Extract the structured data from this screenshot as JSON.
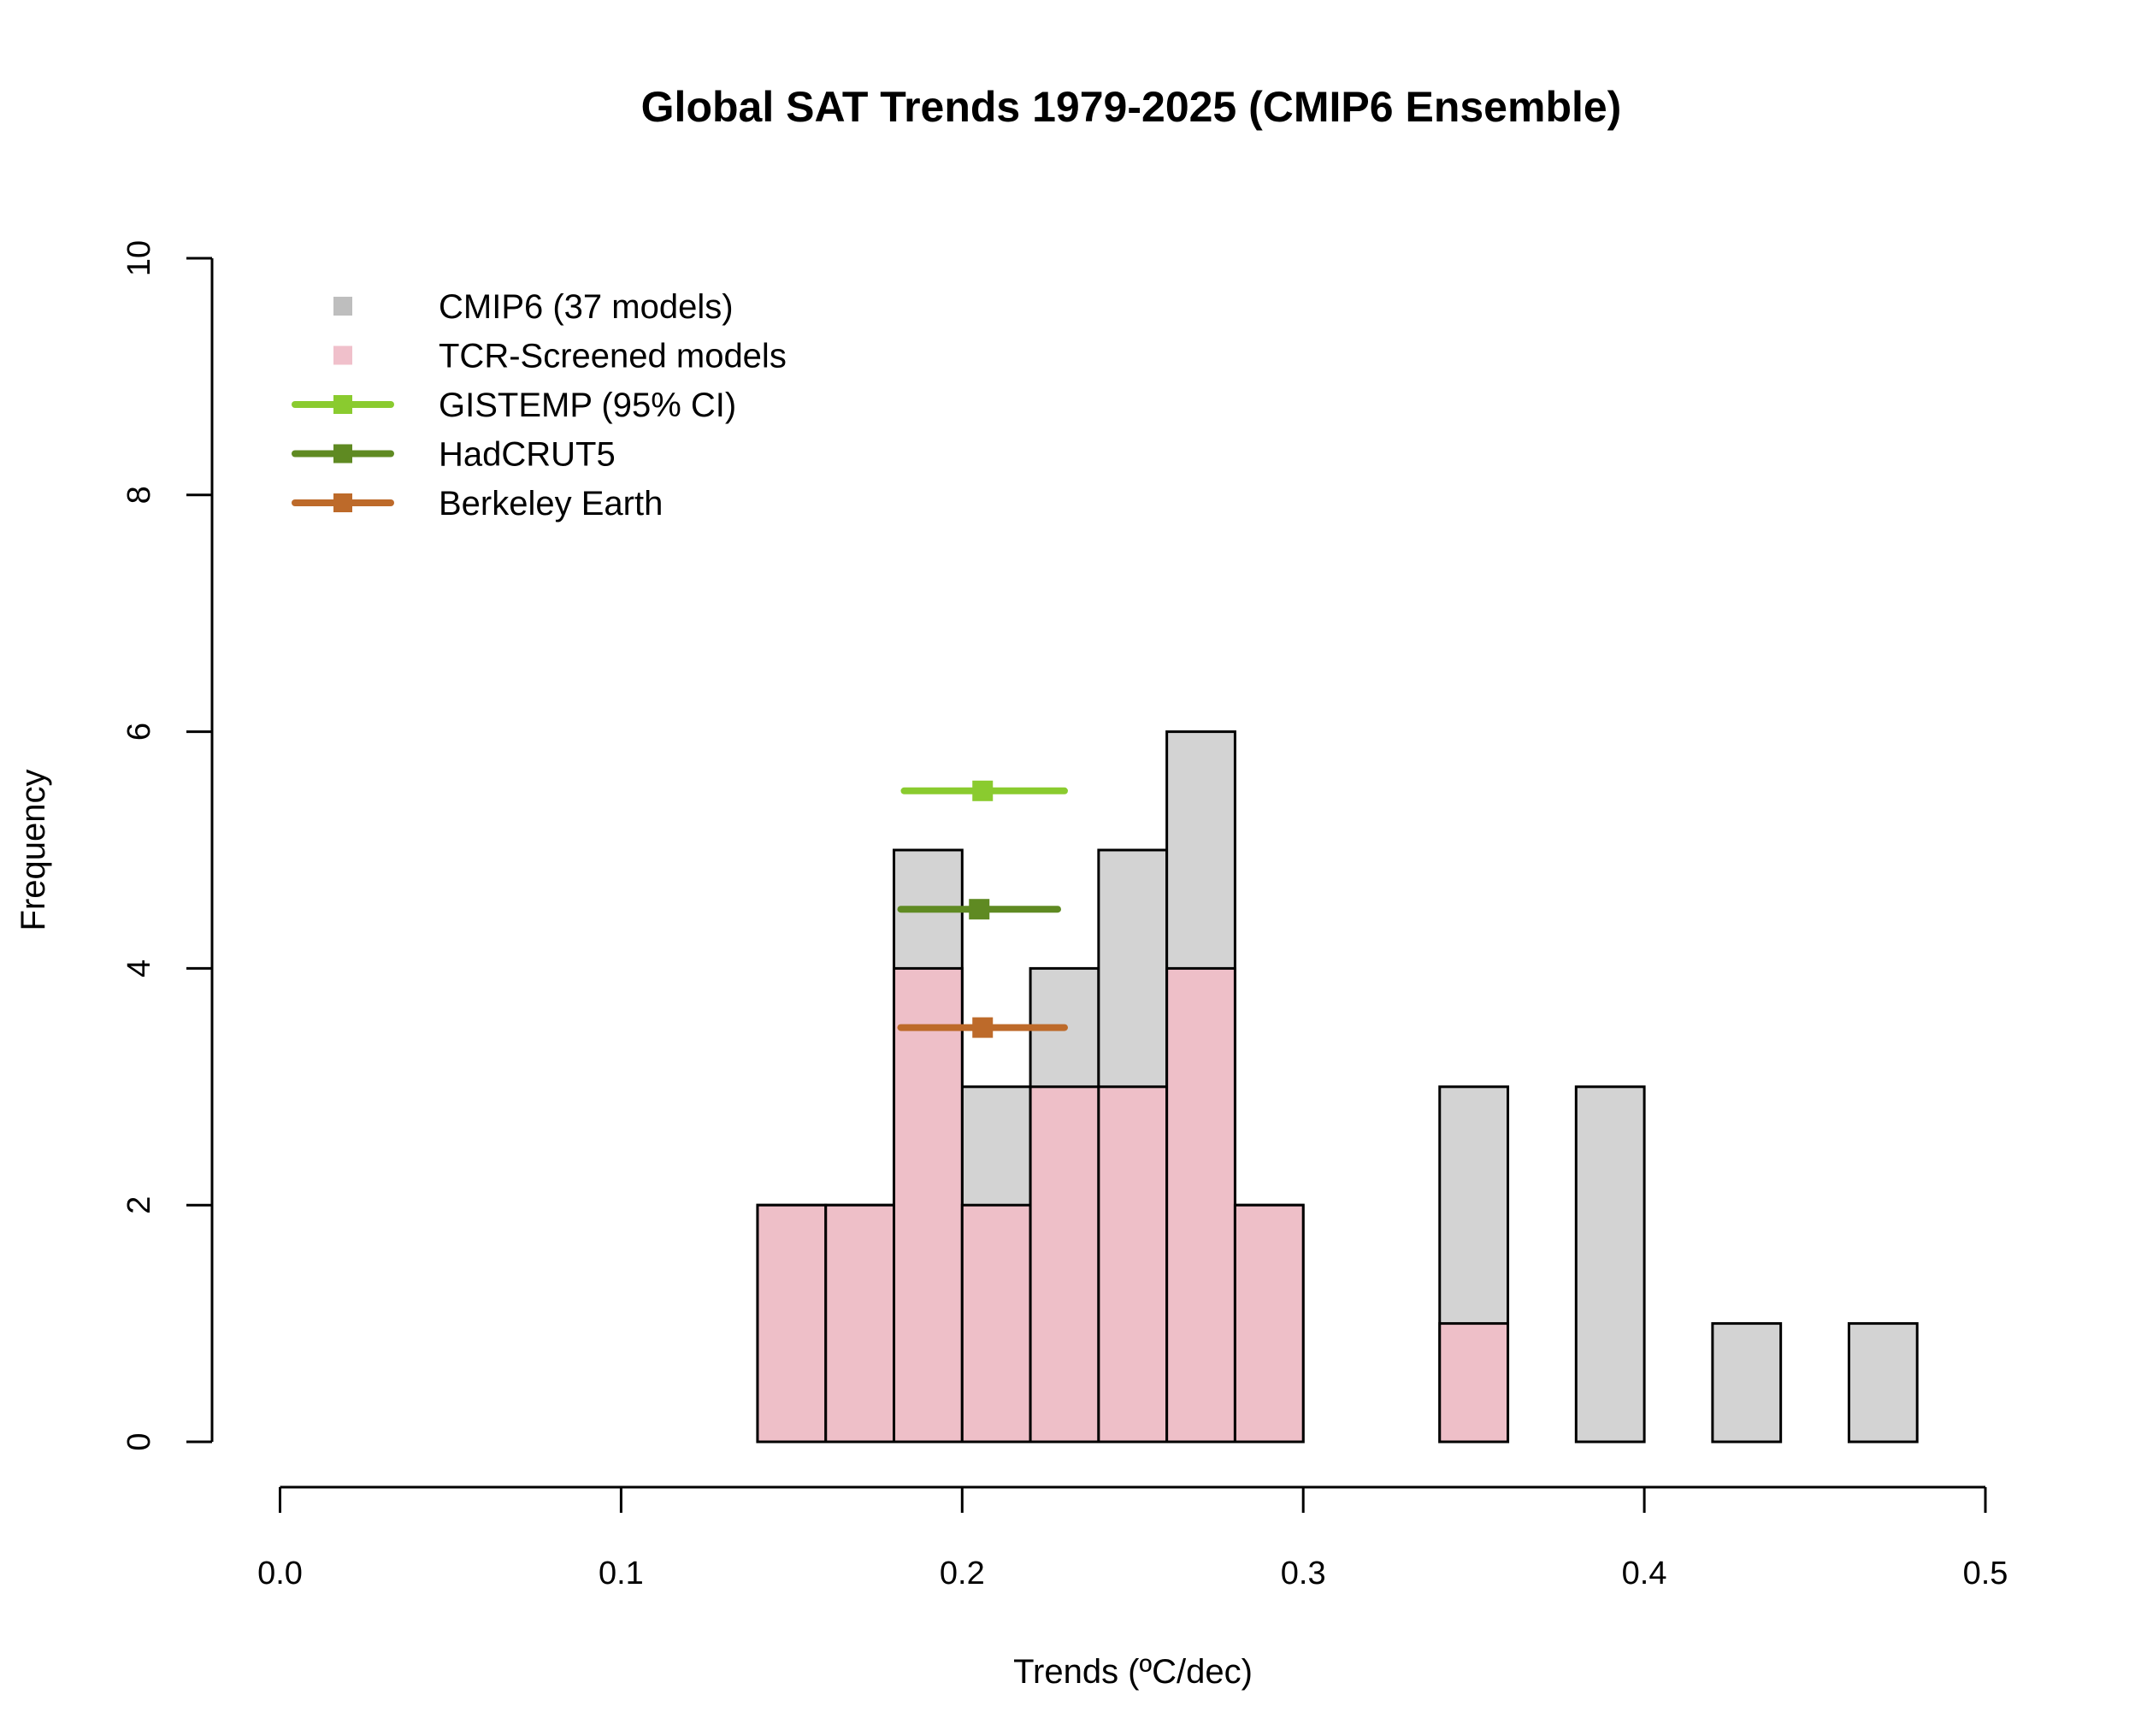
{
  "chart_data": {
    "type": "bar",
    "title": "Global SAT Trends 1979-2025 (CMIP6 Ensemble)",
    "xlabel": "Trends (ºC/dec)",
    "ylabel": "Frequency",
    "xlim": [
      0,
      0.5
    ],
    "ylim": [
      0,
      10
    ],
    "xticks": [
      "0.0",
      "0.1",
      "0.2",
      "0.3",
      "0.4",
      "0.5"
    ],
    "yticks": [
      "0",
      "2",
      "4",
      "6",
      "8",
      "10"
    ],
    "grid": false,
    "legend_position": "top-left",
    "bin_edges": [
      0.14,
      0.16,
      0.18,
      0.2,
      0.22,
      0.24,
      0.26,
      0.28,
      0.3,
      0.32,
      0.34,
      0.36,
      0.38,
      0.4,
      0.42,
      0.44,
      0.46,
      0.48
    ],
    "series": [
      {
        "name": "CMIP6 (37 models)",
        "color": "#D3D3D3",
        "legend_color": "#BEBEBE",
        "values": [
          2,
          2,
          5,
          3,
          4,
          5,
          6,
          2,
          0,
          0,
          3,
          0,
          3,
          0,
          1,
          0,
          1
        ]
      },
      {
        "name": "TCR-Screened models",
        "color": "#EEBFC8",
        "legend_color": "#F0C0CB",
        "values": [
          2,
          2,
          4,
          2,
          3,
          3,
          4,
          2,
          0,
          0,
          1,
          0,
          0,
          0,
          0,
          0,
          0
        ]
      }
    ],
    "error_bars": [
      {
        "name": "GISTEMP (95% CI)",
        "color": "#8ACB2F",
        "center": 0.206,
        "low": 0.183,
        "high": 0.23,
        "y": 5.5
      },
      {
        "name": "HadCRUT5",
        "color": "#5F8A22",
        "center": 0.205,
        "low": 0.182,
        "high": 0.228,
        "y": 4.5
      },
      {
        "name": "Berkeley Earth",
        "color": "#BD6A2A",
        "center": 0.206,
        "low": 0.182,
        "high": 0.23,
        "y": 3.5
      }
    ]
  }
}
